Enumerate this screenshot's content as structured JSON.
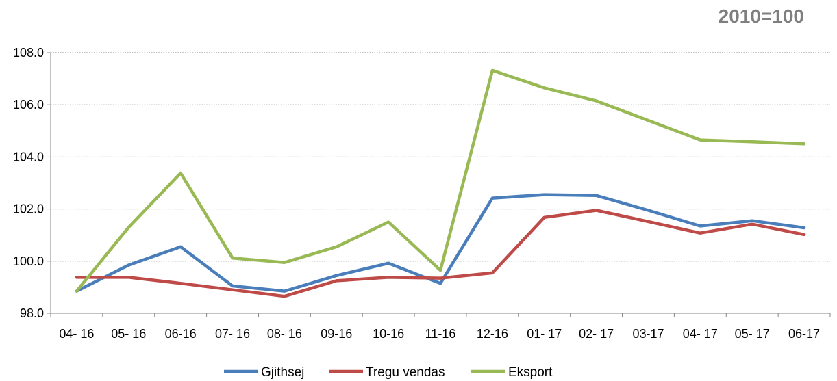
{
  "chart_data": {
    "type": "line",
    "title": "",
    "unit_label": "2010=100",
    "xlabel": "",
    "ylabel": "",
    "categories": [
      "04- 16",
      "05- 16",
      "06-16",
      "07- 16",
      "08- 16",
      "09-16",
      "10-16",
      "11-16",
      "12-16",
      "01- 17",
      "02- 17",
      "03-17",
      "04- 17",
      "05- 17",
      "06-17"
    ],
    "ylim": [
      98.0,
      108.0
    ],
    "yticks": [
      98.0,
      100.0,
      102.0,
      104.0,
      106.0,
      108.0
    ],
    "ytick_labels": [
      "98.0",
      "100.0",
      "102.0",
      "104.0",
      "106.0",
      "108.0"
    ],
    "grid": "horizontal-dotted",
    "legend_position": "bottom",
    "series": [
      {
        "name": "Gjithsej",
        "color": "#4a7ebb",
        "values": [
          98.85,
          99.85,
          100.55,
          99.05,
          98.85,
          99.45,
          99.92,
          99.15,
          102.42,
          102.55,
          102.52,
          101.95,
          101.35,
          101.55,
          101.28
        ]
      },
      {
        "name": "Tregu vendas",
        "color": "#be4b48",
        "values": [
          99.38,
          99.38,
          99.15,
          98.9,
          98.65,
          99.25,
          99.38,
          99.35,
          99.55,
          101.68,
          101.95,
          101.52,
          101.08,
          101.42,
          101.02
        ]
      },
      {
        "name": "Eksport",
        "color": "#98b954",
        "values": [
          98.85,
          101.3,
          103.38,
          100.12,
          99.95,
          100.55,
          101.5,
          99.65,
          107.32,
          106.65,
          106.15,
          105.4,
          104.65,
          104.58,
          104.5
        ]
      }
    ]
  }
}
